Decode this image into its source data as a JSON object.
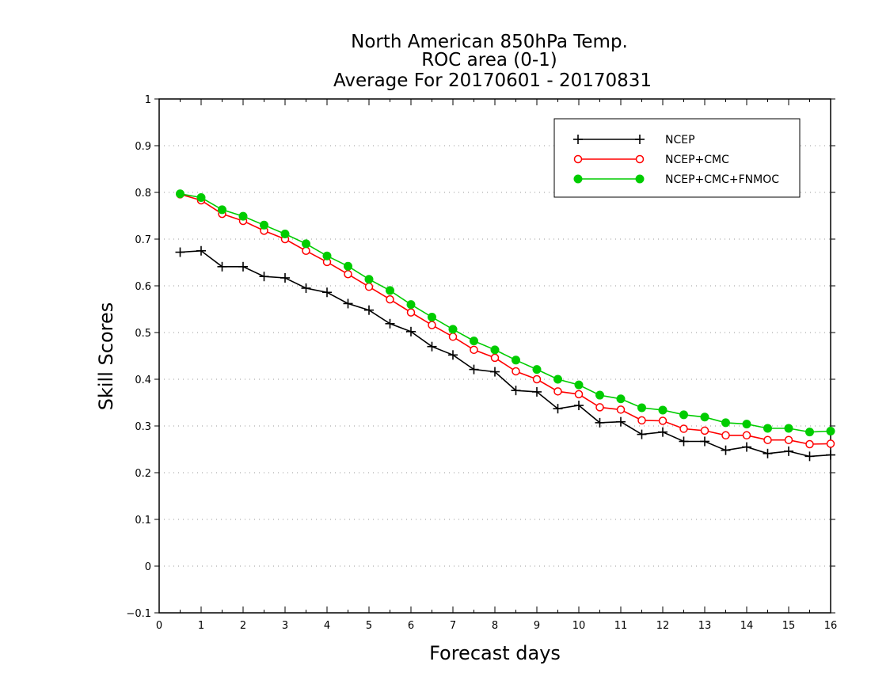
{
  "chart_data": {
    "type": "line",
    "title_lines": [
      "North American 850hPa Temp.",
      "ROC area (0-1)",
      "Average For 20170601 - 20170831"
    ],
    "xlabel": "Forecast days",
    "ylabel": "Skill Scores",
    "xlim": [
      0,
      16
    ],
    "ylim": [
      -0.1,
      1
    ],
    "x_ticks": [
      "0",
      "1",
      "2",
      "3",
      "4",
      "5",
      "6",
      "7",
      "8",
      "9",
      "10",
      "11",
      "12",
      "13",
      "14",
      "15",
      "16"
    ],
    "y_ticks": [
      "−0.1",
      "0",
      "0.1",
      "0.2",
      "0.3",
      "0.4",
      "0.5",
      "0.6",
      "0.7",
      "0.8",
      "0.9",
      "1"
    ],
    "grid": "horizontal dotted",
    "legend_position": "top-right",
    "x": [
      0.5,
      1,
      1.5,
      2,
      2.5,
      3,
      3.5,
      4,
      4.5,
      5,
      5.5,
      6,
      6.5,
      7,
      7.5,
      8,
      8.5,
      9,
      9.5,
      10,
      10.5,
      11,
      11.5,
      12,
      12.5,
      13,
      13.5,
      14,
      14.5,
      15,
      15.5,
      16
    ],
    "series": [
      {
        "name": "NCEP",
        "color": "#000000",
        "marker": "plus",
        "values": [
          0.672,
          0.675,
          0.641,
          0.641,
          0.62,
          0.617,
          0.595,
          0.586,
          0.562,
          0.548,
          0.519,
          0.502,
          0.47,
          0.452,
          0.421,
          0.416,
          0.376,
          0.373,
          0.337,
          0.344,
          0.307,
          0.309,
          0.282,
          0.287,
          0.267,
          0.267,
          0.248,
          0.255,
          0.241,
          0.246,
          0.235,
          0.238
        ]
      },
      {
        "name": "NCEP+CMC",
        "color": "#ff0000",
        "marker": "open-circle",
        "values": [
          0.796,
          0.783,
          0.754,
          0.739,
          0.718,
          0.7,
          0.675,
          0.651,
          0.625,
          0.598,
          0.571,
          0.543,
          0.516,
          0.491,
          0.463,
          0.446,
          0.417,
          0.4,
          0.374,
          0.368,
          0.34,
          0.335,
          0.312,
          0.311,
          0.294,
          0.29,
          0.28,
          0.28,
          0.27,
          0.27,
          0.261,
          0.262
        ]
      },
      {
        "name": "NCEP+CMC+FNMOC",
        "color": "#00cc00",
        "marker": "filled-circle",
        "values": [
          0.797,
          0.789,
          0.763,
          0.749,
          0.73,
          0.711,
          0.69,
          0.664,
          0.642,
          0.614,
          0.59,
          0.56,
          0.533,
          0.507,
          0.482,
          0.463,
          0.441,
          0.421,
          0.4,
          0.388,
          0.366,
          0.358,
          0.339,
          0.334,
          0.324,
          0.319,
          0.307,
          0.304,
          0.295,
          0.295,
          0.287,
          0.289
        ]
      }
    ]
  }
}
